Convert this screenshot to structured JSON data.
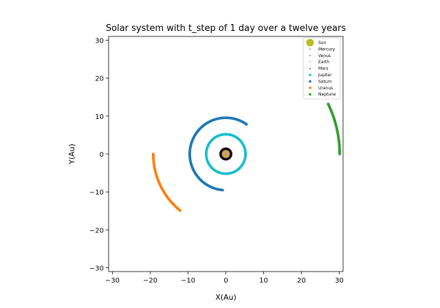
{
  "chart_data": {
    "type": "scatter",
    "title": "Solar system with t_step of 1 day over a twelve years",
    "xlabel": "X(Au)",
    "ylabel": "Y(Au)",
    "xlim": [
      -31,
      31
    ],
    "ylim": [
      -31,
      31
    ],
    "xticks": [
      -30,
      -20,
      -10,
      0,
      10,
      20,
      30
    ],
    "yticks": [
      -30,
      -20,
      -10,
      0,
      10,
      20,
      30
    ],
    "xtick_labels": [
      "−30",
      "−20",
      "−10",
      "0",
      "10",
      "20",
      "30"
    ],
    "ytick_labels": [
      "−30",
      "−20",
      "−10",
      "0",
      "10",
      "20",
      "30"
    ],
    "grid": false,
    "legend_position": "top-right",
    "series": [
      {
        "name": "Sun",
        "color": "#bcbd22",
        "marker": "large-dot",
        "radius_au": 0,
        "start_deg": 0,
        "end_deg": 0
      },
      {
        "name": "Mercury",
        "color": "#1f77b4",
        "marker": "tiny-dot",
        "radius_au": 0.39,
        "start_deg": 0,
        "end_deg": 360
      },
      {
        "name": "Venus",
        "color": "#2ca02c",
        "marker": "tiny-dot",
        "radius_au": 0.72,
        "start_deg": 0,
        "end_deg": 360
      },
      {
        "name": "Earth",
        "color": "#e377c2",
        "marker": "tiny-dot",
        "radius_au": 1.0,
        "start_deg": 0,
        "end_deg": 360
      },
      {
        "name": "Mars",
        "color": "#7f0050",
        "marker": "tiny-dot",
        "radius_au": 1.52,
        "start_deg": 0,
        "end_deg": 360
      },
      {
        "name": "Jupiter",
        "color": "#17becf",
        "marker": "dot",
        "radius_au": 5.2,
        "start_deg": 0,
        "end_deg": 360
      },
      {
        "name": "Saturn",
        "color": "#1f77b4",
        "marker": "dot",
        "radius_au": 9.55,
        "start_deg": 55,
        "end_deg": 265
      },
      {
        "name": "Uranus",
        "color": "#ff7f0e",
        "marker": "dot",
        "radius_au": 19.2,
        "start_deg": 180,
        "end_deg": 231
      },
      {
        "name": "Neptune",
        "color": "#2ca02c",
        "marker": "dot",
        "radius_au": 30.1,
        "start_deg": 0,
        "end_deg": 26
      }
    ],
    "center_marker_color": "#000000"
  }
}
